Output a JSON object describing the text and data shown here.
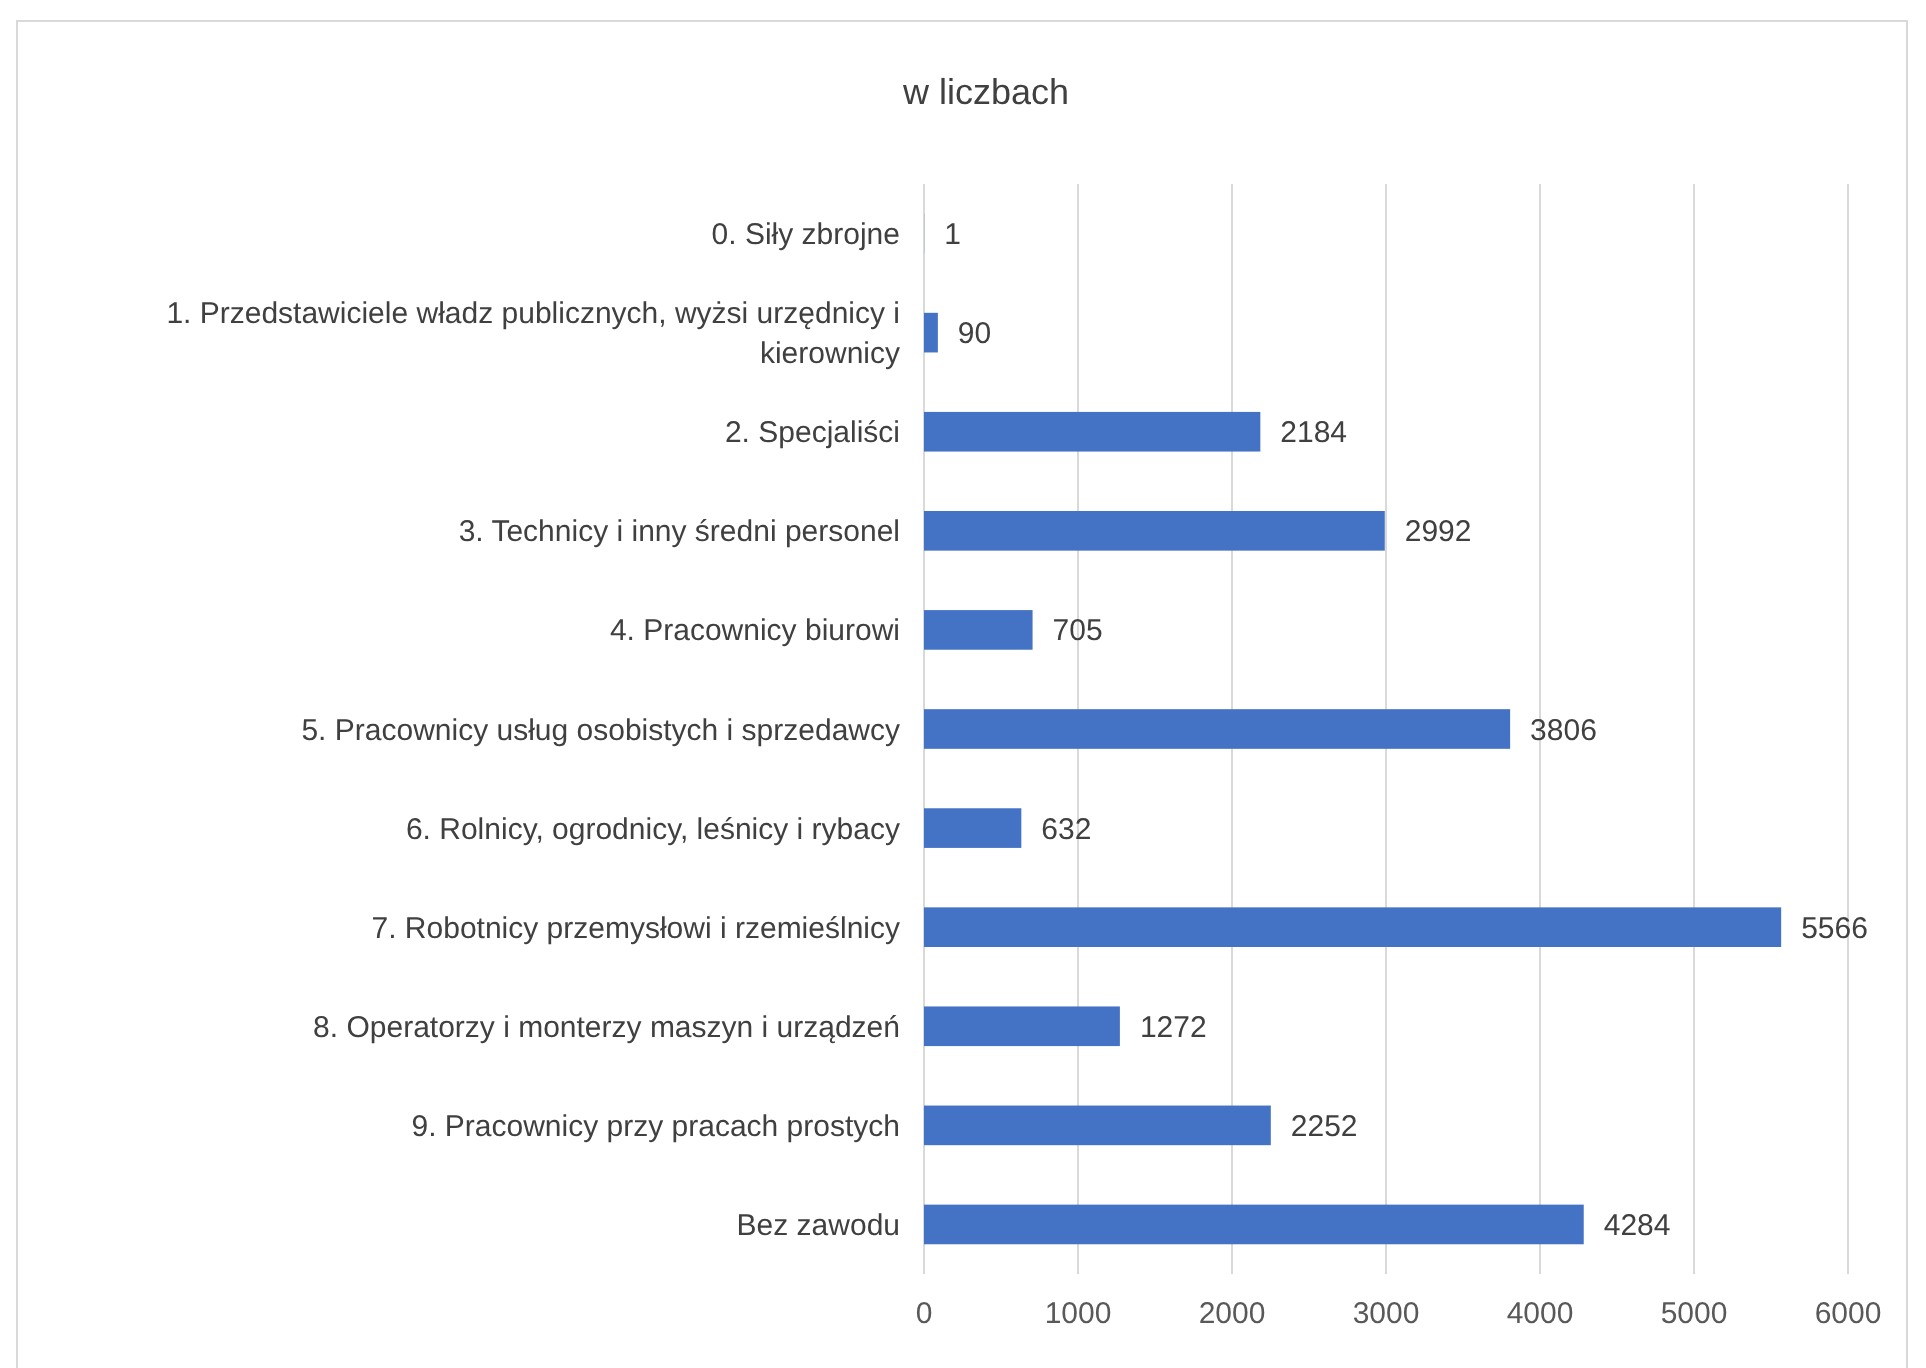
{
  "chart_data": {
    "type": "bar",
    "orientation": "horizontal",
    "title": "w liczbach",
    "categories": [
      "0. Siły zbrojne",
      "1. Przedstawiciele władz publicznych, wyżsi urzędnicy i kierownicy",
      "2. Specjaliści",
      "3. Technicy i inny średni personel",
      "4. Pracownicy biurowi",
      "5. Pracownicy usług osobistych i sprzedawcy",
      "6. Rolnicy, ogrodnicy, leśnicy i rybacy",
      "7. Robotnicy przemysłowi i rzemieślnicy",
      "8. Operatorzy i monterzy maszyn i urządzeń",
      "9. Pracownicy przy pracach prostych",
      "Bez zawodu"
    ],
    "values": [
      1,
      90,
      2184,
      2992,
      705,
      3806,
      632,
      5566,
      1272,
      2252,
      4284
    ],
    "color": "#4472c4",
    "xlim": [
      0,
      6000
    ],
    "xticks": [
      0,
      1000,
      2000,
      3000,
      4000,
      5000,
      6000
    ],
    "grid": "x",
    "data_labels": true
  }
}
